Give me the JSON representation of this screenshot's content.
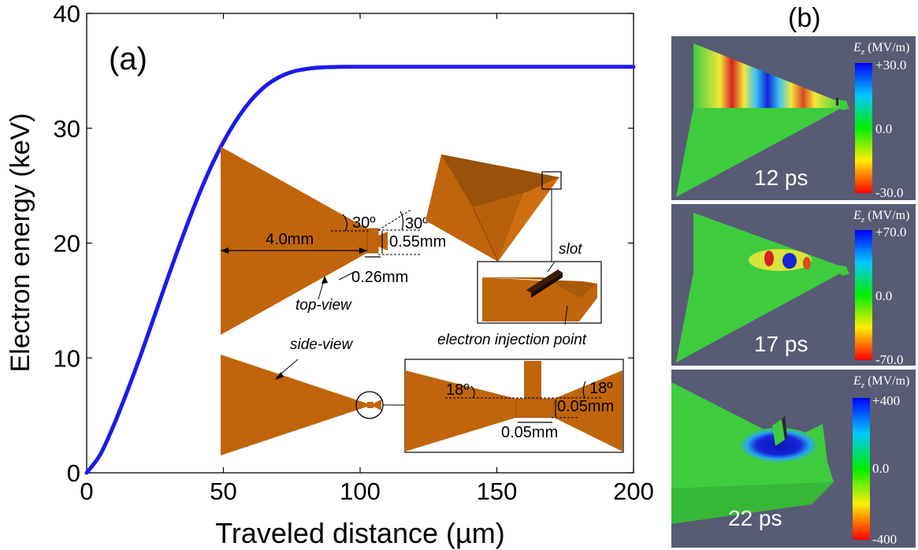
{
  "chart_data": {
    "type": "line",
    "panel_label": "(a)",
    "xlabel": "Traveled distance (µm)",
    "ylabel": "Electron energy (keV)",
    "xlim": [
      0,
      200
    ],
    "ylim": [
      0,
      40
    ],
    "xticks": [
      "0",
      "50",
      "100",
      "150",
      "200"
    ],
    "yticks": [
      "0",
      "10",
      "20",
      "30",
      "40"
    ],
    "grid": false,
    "series": [
      {
        "color": "#1a1aee",
        "x": [
          0,
          5,
          10,
          15,
          20,
          25,
          30,
          35,
          40,
          45,
          50,
          55,
          60,
          65,
          70,
          75,
          80,
          85,
          90,
          95,
          100,
          110,
          120,
          140,
          160,
          180,
          200
        ],
        "y": [
          0,
          1.6,
          4.2,
          7.2,
          10.4,
          13.8,
          17.2,
          20.5,
          23.6,
          26.4,
          28.8,
          30.8,
          32.4,
          33.6,
          34.4,
          34.9,
          35.15,
          35.28,
          35.33,
          35.35,
          35.35,
          35.35,
          35.35,
          35.35,
          35.35,
          35.35,
          35.35
        ]
      }
    ]
  },
  "insets": {
    "top_view_label": "top-view",
    "side_view_label": "side-view",
    "dim_4mm": "4.0mm",
    "dim_055": "0.55mm",
    "dim_026": "0.26mm",
    "angle_30a": "30º",
    "angle_30b": "30º",
    "slot_label": "slot",
    "injection_label": "electron injection point",
    "angle_18a": "18º",
    "angle_18b": "18º",
    "dim_005a": "0.05mm",
    "dim_005b": "0.05mm"
  },
  "panel_b": {
    "label": "(b)",
    "colorbar_title_italic": "E",
    "colorbar_title_sub": "z",
    "colorbar_title_unit": " (MV/m)",
    "snapshots": [
      {
        "time": "12 ps",
        "max": "+30.0",
        "mid": "0.0",
        "min": "-30.0"
      },
      {
        "time": "17 ps",
        "max": "+70.0",
        "mid": "0.0",
        "min": "-70.0"
      },
      {
        "time": "22 ps",
        "max": "+400",
        "mid": "0.0",
        "min": "-400"
      }
    ]
  },
  "colors": {
    "curve": "#1a1aee",
    "copper": "#c0650b",
    "panel_bg": "#575b74",
    "field_green": "#3ecc3e"
  }
}
